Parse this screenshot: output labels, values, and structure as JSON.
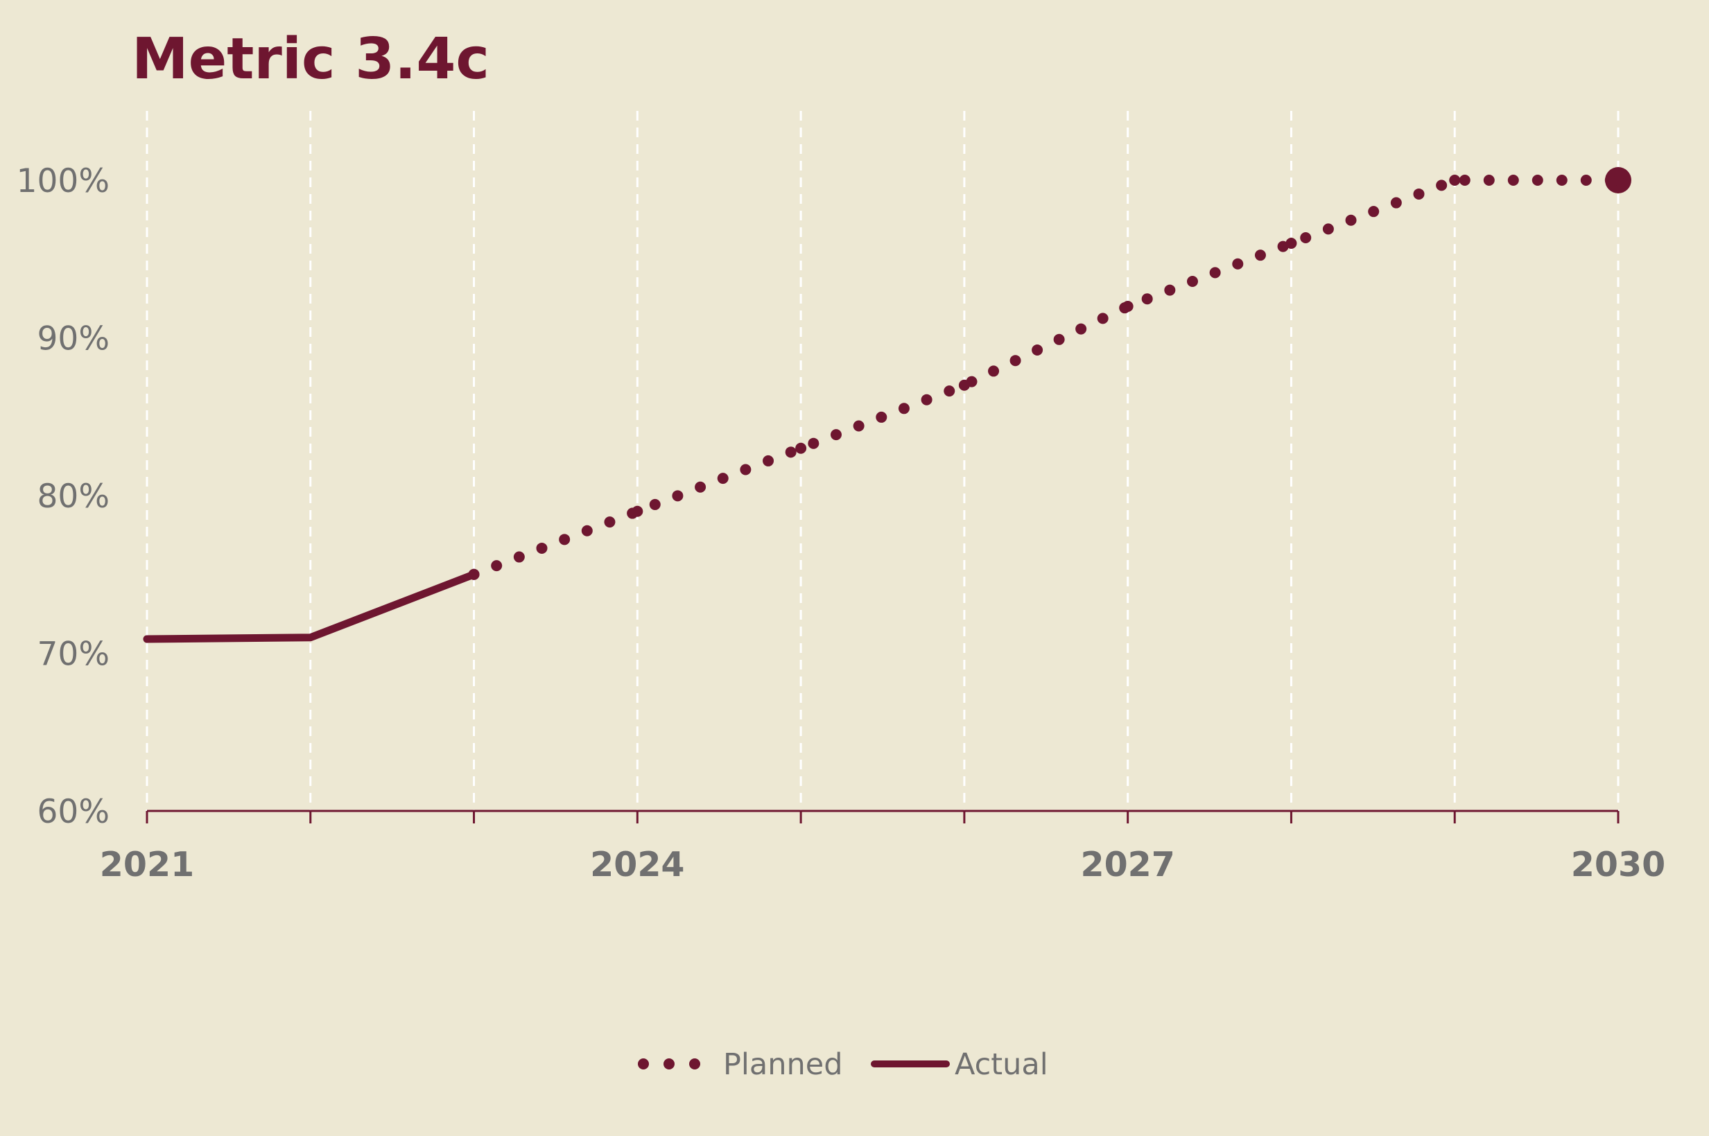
{
  "chart_data": {
    "type": "line",
    "title": "Metric 3.4c",
    "xlabel": "",
    "ylabel": "",
    "x_range": [
      2021,
      2030
    ],
    "x_ticks": [
      2021,
      2022,
      2023,
      2024,
      2025,
      2026,
      2027,
      2028,
      2029,
      2030
    ],
    "x_tick_labels": [
      "2021",
      "",
      "",
      "2024",
      "",
      "",
      "2027",
      "",
      "",
      "2030"
    ],
    "ylim": [
      60,
      104
    ],
    "y_ticks": [
      60,
      70,
      80,
      90,
      100
    ],
    "y_tick_labels": [
      "60%",
      "70%",
      "80%",
      "90%",
      "100%"
    ],
    "grid": "vertical dashed",
    "legend_position": "bottom-center",
    "series": [
      {
        "name": "Planned",
        "style": "dotted",
        "x": [
          2023,
          2024,
          2025,
          2026,
          2027,
          2028,
          2029,
          2030
        ],
        "y": [
          75.0,
          79.0,
          83.0,
          87.0,
          92.0,
          96.0,
          100.0,
          100.0
        ],
        "end_marker": true
      },
      {
        "name": "Actual",
        "style": "solid",
        "x": [
          2021,
          2022,
          2023
        ],
        "y": [
          70.9,
          71.0,
          75.0
        ]
      }
    ],
    "colors": {
      "series": "#6e1630",
      "title": "#6e1630",
      "axis": "#6e1630",
      "grid": "#ffffff",
      "text": "#707070",
      "background": "#ede8d3"
    }
  }
}
